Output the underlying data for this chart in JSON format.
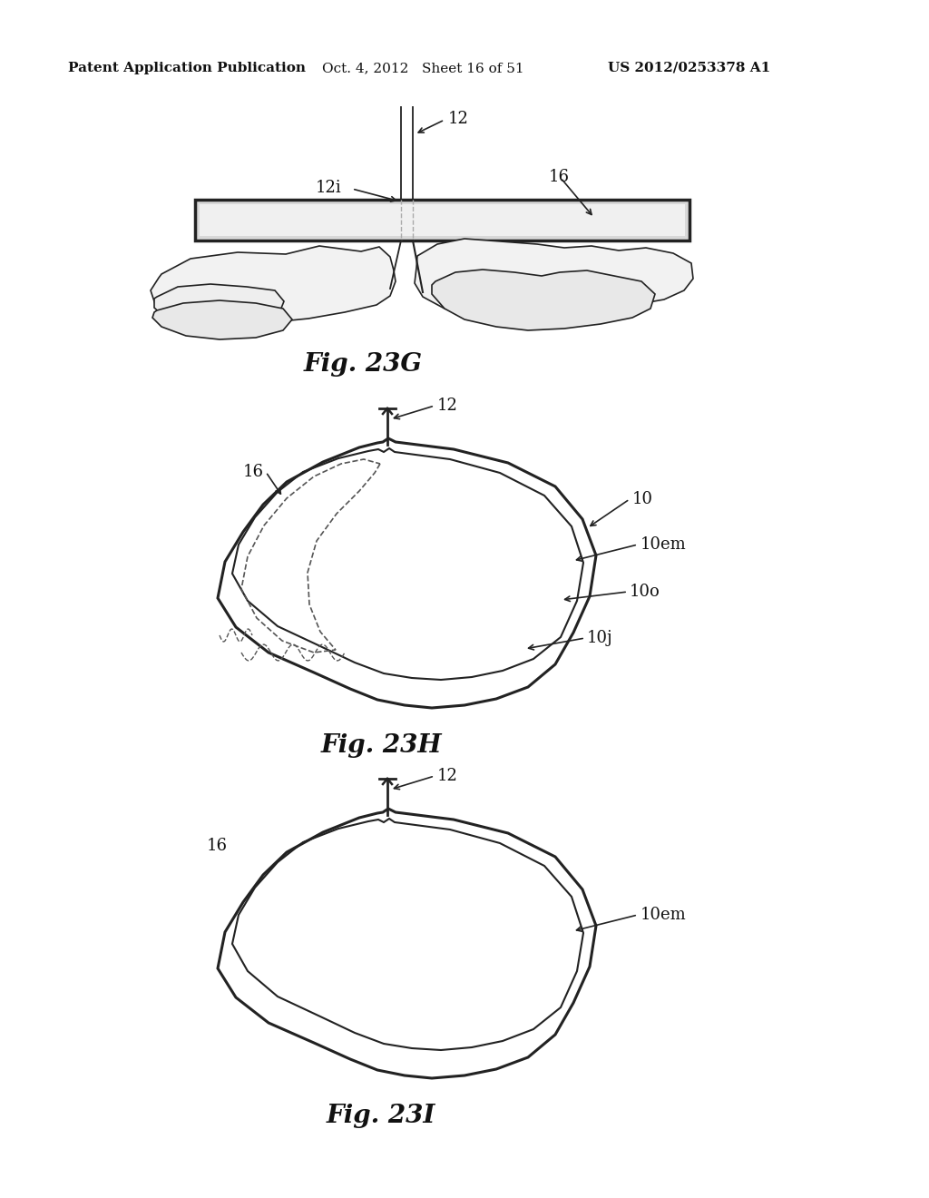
{
  "bg_color": "#ffffff",
  "header_left": "Patent Application Publication",
  "header_mid": "Oct. 4, 2012   Sheet 16 of 51",
  "header_right": "US 2012/0253378 A1",
  "fig23G_label": "Fig. 23G",
  "fig23H_label": "Fig. 23H",
  "fig23I_label": "Fig. 23I"
}
